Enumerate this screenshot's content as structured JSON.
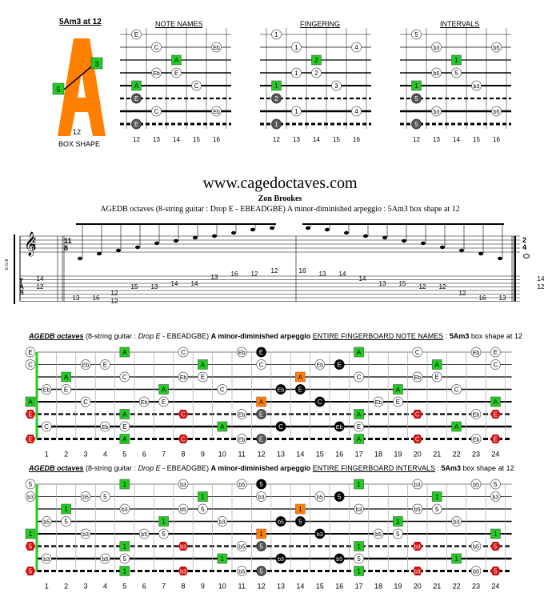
{
  "box": {
    "title": "5Am3 at 12",
    "letter": "A",
    "fret_label": "12",
    "marker_left": "5",
    "marker_right": "3",
    "caption": "BOX SHAPE",
    "color_orange": "#ff8000",
    "color_green": "#22cc22"
  },
  "small_diagrams": [
    {
      "title": "NOTE NAMES",
      "frets": [
        "12",
        "13",
        "14",
        "15",
        "16"
      ],
      "notes": [
        {
          "s": 0,
          "f": 12,
          "t": "E",
          "k": "w"
        },
        {
          "s": 1,
          "f": 13,
          "t": "C",
          "k": "w"
        },
        {
          "s": 1,
          "f": 16,
          "t": "Eb",
          "k": "w"
        },
        {
          "s": 2,
          "f": 14,
          "t": "A",
          "k": "g"
        },
        {
          "s": 3,
          "f": 13,
          "t": "Eb",
          "k": "w"
        },
        {
          "s": 3,
          "f": 14,
          "t": "E",
          "k": "w"
        },
        {
          "s": 4,
          "f": 12,
          "t": "A",
          "k": "g"
        },
        {
          "s": 4,
          "f": 15,
          "t": "C",
          "k": "w"
        },
        {
          "s": 5,
          "f": 12,
          "t": "E",
          "k": "d"
        },
        {
          "s": 6,
          "f": 13,
          "t": "C",
          "k": "w"
        },
        {
          "s": 6,
          "f": 16,
          "t": "Eb",
          "k": "w"
        },
        {
          "s": 7,
          "f": 12,
          "t": "E",
          "k": "d"
        }
      ]
    },
    {
      "title": "FINGERING",
      "frets": [
        "12",
        "13",
        "14",
        "15",
        "16"
      ],
      "notes": [
        {
          "s": 0,
          "f": 12,
          "t": "1",
          "k": "w"
        },
        {
          "s": 1,
          "f": 13,
          "t": "1",
          "k": "w"
        },
        {
          "s": 1,
          "f": 16,
          "t": "4",
          "k": "w"
        },
        {
          "s": 2,
          "f": 14,
          "t": "2",
          "k": "g"
        },
        {
          "s": 3,
          "f": 13,
          "t": "1",
          "k": "w"
        },
        {
          "s": 3,
          "f": 14,
          "t": "2",
          "k": "w"
        },
        {
          "s": 4,
          "f": 12,
          "t": "1",
          "k": "g"
        },
        {
          "s": 4,
          "f": 15,
          "t": "3",
          "k": "w"
        },
        {
          "s": 5,
          "f": 12,
          "t": "2",
          "k": "d"
        },
        {
          "s": 6,
          "f": 13,
          "t": "1",
          "k": "w"
        },
        {
          "s": 6,
          "f": 16,
          "t": "4",
          "k": "w"
        },
        {
          "s": 7,
          "f": 12,
          "t": "1",
          "k": "d"
        }
      ]
    },
    {
      "title": "INTERVALS",
      "frets": [
        "12",
        "13",
        "14",
        "15",
        "16"
      ],
      "notes": [
        {
          "s": 0,
          "f": 12,
          "t": "5",
          "k": "w"
        },
        {
          "s": 1,
          "f": 13,
          "t": "b3",
          "k": "w"
        },
        {
          "s": 1,
          "f": 16,
          "t": "b5",
          "k": "w"
        },
        {
          "s": 2,
          "f": 14,
          "t": "1",
          "k": "g"
        },
        {
          "s": 3,
          "f": 13,
          "t": "b5",
          "k": "w"
        },
        {
          "s": 3,
          "f": 14,
          "t": "5",
          "k": "w"
        },
        {
          "s": 4,
          "f": 12,
          "t": "1",
          "k": "g"
        },
        {
          "s": 4,
          "f": 15,
          "t": "b3",
          "k": "w"
        },
        {
          "s": 5,
          "f": 12,
          "t": "5",
          "k": "d"
        },
        {
          "s": 6,
          "f": 13,
          "t": "b3",
          "k": "w"
        },
        {
          "s": 6,
          "f": 16,
          "t": "b5",
          "k": "w"
        },
        {
          "s": 7,
          "f": 12,
          "t": "5",
          "k": "d"
        }
      ]
    }
  ],
  "site": "www.cagedoctaves.com",
  "author": "Zon Brookes",
  "subtitle": "AGEDB octaves (8-string guitar : Drop E - EBEADGBE) A minor-diminished arpeggio : 5Am3 box shape at 12",
  "score": {
    "time_top": "2",
    "time_bottom": "4",
    "tuplet": "11",
    "tuplet_bottom": "8",
    "clef_label": "E-G-8",
    "tab_letters": [
      "T",
      "A",
      "B"
    ],
    "tab_numbers": [
      "14",
      "12",
      "13",
      "16",
      "12",
      "12",
      "15",
      "13",
      "14",
      "14",
      "13",
      "16",
      "12",
      "12",
      "16",
      "13",
      "14",
      "14",
      "13",
      "15",
      "12",
      "12",
      "12",
      "16",
      "13",
      "14",
      "12"
    ]
  },
  "fb_notes": {
    "header_bold_italic": "AGEDB octaves",
    "header_mid1": " (8-string guitar : ",
    "header_italic": "Drop E",
    "header_mid2": " - EBEADGBE) ",
    "header_bold": "A minor-diminished arpeggio",
    "header_under": "ENTIRE FINGERBOARD NOTE NAMES",
    "header_sep": " : ",
    "header_bold2": "5Am3",
    "header_end": " box shape at 12"
  },
  "fb_intervals": {
    "header_bold_italic": "AGEDB octaves",
    "header_mid1": " (8-string guitar : ",
    "header_italic": "Drop E",
    "header_mid2": " - EBEADGBE) ",
    "header_bold": "A minor-diminished arpeggio",
    "header_under": "ENTIRE FINGERBOARD INTERVALS",
    "header_sep": " : ",
    "header_bold2": "5Am3",
    "header_end": " box shape at 12"
  },
  "fret_numbers": [
    "1",
    "2",
    "3",
    "4",
    "5",
    "6",
    "7",
    "8",
    "9",
    "10",
    "11",
    "12",
    "13",
    "14",
    "15",
    "16",
    "17",
    "18",
    "19",
    "20",
    "21",
    "22",
    "23",
    "24"
  ],
  "notes_by_pc": {
    "0": "A",
    "3": "C",
    "6": "Eb",
    "7": "E"
  },
  "intervals_by_pc": {
    "0": "1",
    "3": "b3",
    "6": "b5",
    "7": "5"
  },
  "string_open_pc": [
    7,
    3,
    10,
    5,
    0,
    7,
    2,
    7
  ]
}
